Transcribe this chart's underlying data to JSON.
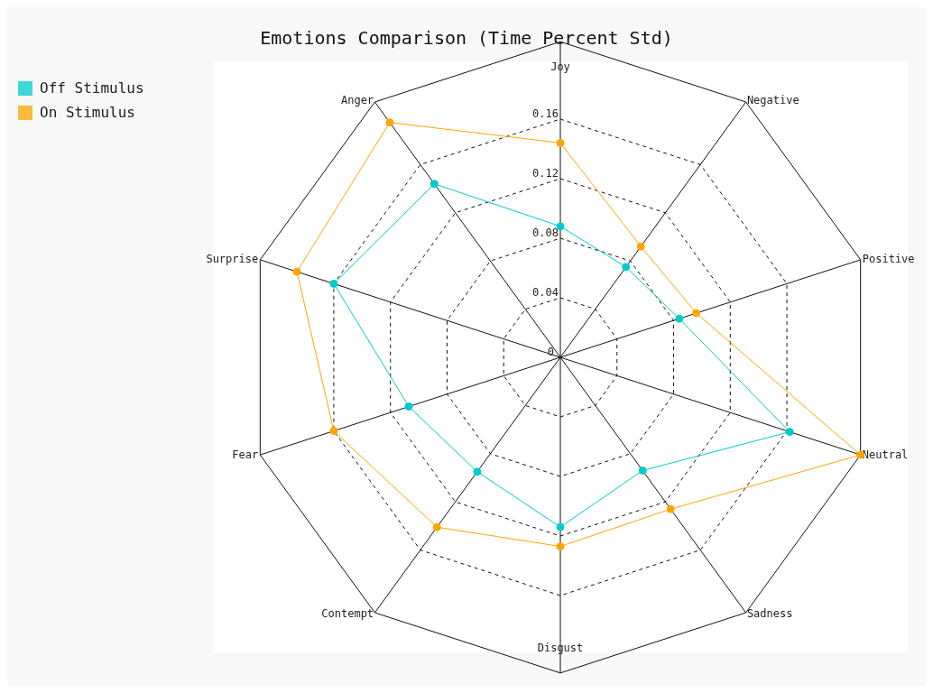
{
  "chart_data": {
    "type": "radar",
    "title": "Emotions Comparison (Time Percent Std)",
    "categories": [
      "Joy",
      "Negative",
      "Positive",
      "Neutral",
      "Sadness",
      "Disgust",
      "Contempt",
      "Fear",
      "Surprise",
      "Anger"
    ],
    "series": [
      {
        "name": "Off Stimulus",
        "color": "#00cccc",
        "values": [
          0.088,
          0.075,
          0.084,
          0.162,
          0.094,
          0.114,
          0.095,
          0.107,
          0.16,
          0.144
        ]
      },
      {
        "name": "On Stimulus",
        "color": "#ffa500",
        "values": [
          0.144,
          0.092,
          0.096,
          0.212,
          0.126,
          0.127,
          0.141,
          0.16,
          0.186,
          0.195
        ]
      }
    ],
    "ylim": [
      0,
      0.212
    ],
    "yticks": [
      0,
      0.04,
      0.08,
      0.12,
      0.16
    ],
    "grid": true,
    "legend": "top left",
    "marker": "circle",
    "line_style": "solid"
  }
}
